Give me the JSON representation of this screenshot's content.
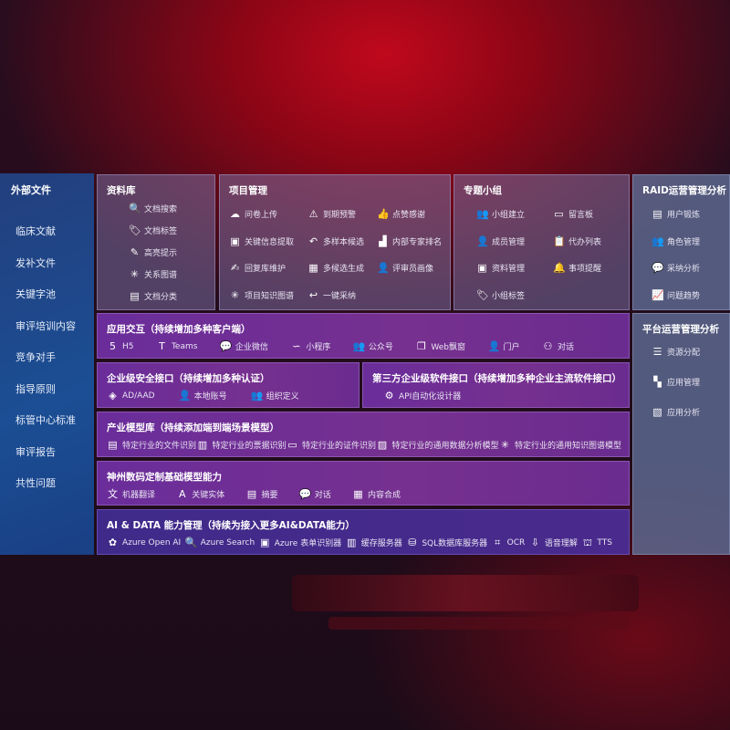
{
  "external": {
    "title": "外部文件",
    "items": [
      "临床文献",
      "发补文件",
      "关键字池",
      "审评培训内容",
      "竞争对手",
      "指导原则",
      "标管中心标准",
      "审评报告",
      "共性问题"
    ]
  },
  "library": {
    "title": "资料库",
    "items": [
      {
        "label": "文档搜索",
        "icon": "doc-search-icon",
        "g": "🔍"
      },
      {
        "label": "文档标签",
        "icon": "tag-icon",
        "g": "🏷"
      },
      {
        "label": "高亮提示",
        "icon": "pen-icon",
        "g": "✎"
      },
      {
        "label": "关系图谱",
        "icon": "graph-icon",
        "g": "✳"
      },
      {
        "label": "文档分类",
        "icon": "doc-list-icon",
        "g": "▤"
      }
    ]
  },
  "project": {
    "title": "项目管理",
    "items": [
      {
        "label": "问卷上传",
        "icon": "cloud-upload-icon",
        "g": "☁"
      },
      {
        "label": "到期预警",
        "icon": "alarm-icon",
        "g": "⚠"
      },
      {
        "label": "点赞感谢",
        "icon": "thumbs-up-icon",
        "g": "👍"
      },
      {
        "label": "关键信息提取",
        "icon": "window-icon",
        "g": "▣"
      },
      {
        "label": "多样本候选",
        "icon": "reply-all-icon",
        "g": "↶"
      },
      {
        "label": "内部专家排名",
        "icon": "podium-icon",
        "g": "▟"
      },
      {
        "label": "回复库维护",
        "icon": "edit-icon",
        "g": "✍"
      },
      {
        "label": "多候选生成",
        "icon": "puzzle-icon",
        "g": "▦"
      },
      {
        "label": "评审员画像",
        "icon": "user-icon",
        "g": "👤"
      },
      {
        "label": "项目知识图谱",
        "icon": "network-icon",
        "g": "✳"
      },
      {
        "label": "一键采纳",
        "icon": "reply-icon",
        "g": "↩"
      }
    ]
  },
  "group": {
    "title": "专题小组",
    "items": [
      {
        "label": "小组建立",
        "icon": "users-icon",
        "g": "👥"
      },
      {
        "label": "留言板",
        "icon": "bbs-icon",
        "g": "▭"
      },
      {
        "label": "成员管理",
        "icon": "user-add-icon",
        "g": "👤"
      },
      {
        "label": "代办列表",
        "icon": "clipboard-icon",
        "g": "📋"
      },
      {
        "label": "资料管理",
        "icon": "folder-icon",
        "g": "▣"
      },
      {
        "label": "事项提醒",
        "icon": "bell-icon",
        "g": "🔔"
      },
      {
        "label": "小组标签",
        "icon": "tag-icon",
        "g": "🏷"
      }
    ]
  },
  "raid": {
    "title": "RAID运营管理分析",
    "items": [
      {
        "label": "用户锻炼",
        "icon": "id-card-icon",
        "g": "▤"
      },
      {
        "label": "角色管理",
        "icon": "users-icon",
        "g": "👥"
      },
      {
        "label": "采纳分析",
        "icon": "qa-icon",
        "g": "💬"
      },
      {
        "label": "问题趋势",
        "icon": "trend-icon",
        "g": "📈"
      }
    ]
  },
  "platform": {
    "title": "平台运营管理分析",
    "items": [
      {
        "label": "资源分配",
        "icon": "checklist-icon",
        "g": "☰"
      },
      {
        "label": "应用管理",
        "icon": "apps-icon",
        "g": "▚"
      },
      {
        "label": "应用分析",
        "icon": "chart-icon",
        "g": "▧"
      }
    ]
  },
  "app": {
    "title": "应用交互（持续增加多种客户端）",
    "items": [
      {
        "label": "H5",
        "icon": "html5-icon",
        "g": "5"
      },
      {
        "label": "Teams",
        "icon": "teams-icon",
        "g": "T"
      },
      {
        "label": "企业微信",
        "icon": "wecom-icon",
        "g": "💬"
      },
      {
        "label": "小程序",
        "icon": "miniprogram-icon",
        "g": "∽"
      },
      {
        "label": "公众号",
        "icon": "users-icon",
        "g": "👥"
      },
      {
        "label": "Web飘窗",
        "icon": "window-icon",
        "g": "❐"
      },
      {
        "label": "门户",
        "icon": "portal-icon",
        "g": "👤"
      },
      {
        "label": "对话",
        "icon": "chat-users-icon",
        "g": "⚇"
      }
    ]
  },
  "security": {
    "title": "企业级安全接口（持续增加多种认证）",
    "items": [
      {
        "label": "AD/AAD",
        "icon": "diamond-icon",
        "g": "◈"
      },
      {
        "label": "本地账号",
        "icon": "user-lock-icon",
        "g": "👤"
      },
      {
        "label": "组织定义",
        "icon": "org-icon",
        "g": "👥"
      }
    ]
  },
  "thirdparty": {
    "title": "第三方企业级软件接口（持续增加多种企业主流软件接口）",
    "items": [
      {
        "label": "API自动化设计器",
        "icon": "gear-network-icon",
        "g": "⚙"
      }
    ]
  },
  "industry": {
    "title": "产业模型库（持续添加端到端场景模型）",
    "items": [
      {
        "label": "特定行业的文件识别",
        "icon": "doc-scan-icon",
        "g": "▤"
      },
      {
        "label": "特定行业的票据识别",
        "icon": "receipt-icon",
        "g": "▥"
      },
      {
        "label": "特定行业的证件识别",
        "icon": "id-card-icon",
        "g": "▭"
      },
      {
        "label": "特定行业的通用数据分析模型",
        "icon": "image-chart-icon",
        "g": "▨"
      },
      {
        "label": "特定行业的通用知识图谱模型",
        "icon": "graph-icon",
        "g": "✳"
      }
    ]
  },
  "base": {
    "title": "神州数码定制基础模型能力",
    "items": [
      {
        "label": "机器翻译",
        "icon": "translate-icon",
        "g": "文"
      },
      {
        "label": "关键实体",
        "icon": "entity-icon",
        "g": "A"
      },
      {
        "label": "摘要",
        "icon": "summary-icon",
        "g": "▤"
      },
      {
        "label": "对话",
        "icon": "chat-icon",
        "g": "💬"
      },
      {
        "label": "内容合成",
        "icon": "puzzle-icon",
        "g": "▦"
      }
    ]
  },
  "aidata": {
    "title": "AI & DATA 能力管理（持续为接入更多AI&DATA能力）",
    "items": [
      {
        "label": "Azure Open AI",
        "icon": "openai-icon",
        "g": "✿"
      },
      {
        "label": "Azure Search",
        "icon": "search-doc-icon",
        "g": "🔍"
      },
      {
        "label": "Azure 表单识别器",
        "icon": "form-scan-icon",
        "g": "▣"
      },
      {
        "label": "缓存服务器",
        "icon": "cache-icon",
        "g": "▥"
      },
      {
        "label": "SQL数据库服务器",
        "icon": "database-icon",
        "g": "⛁"
      },
      {
        "label": "OCR",
        "icon": "ocr-icon",
        "g": "⌗"
      },
      {
        "label": "语音理解",
        "icon": "voice-icon",
        "g": "⇩"
      },
      {
        "label": "TTS",
        "icon": "tts-icon",
        "g": "⛫"
      }
    ]
  }
}
